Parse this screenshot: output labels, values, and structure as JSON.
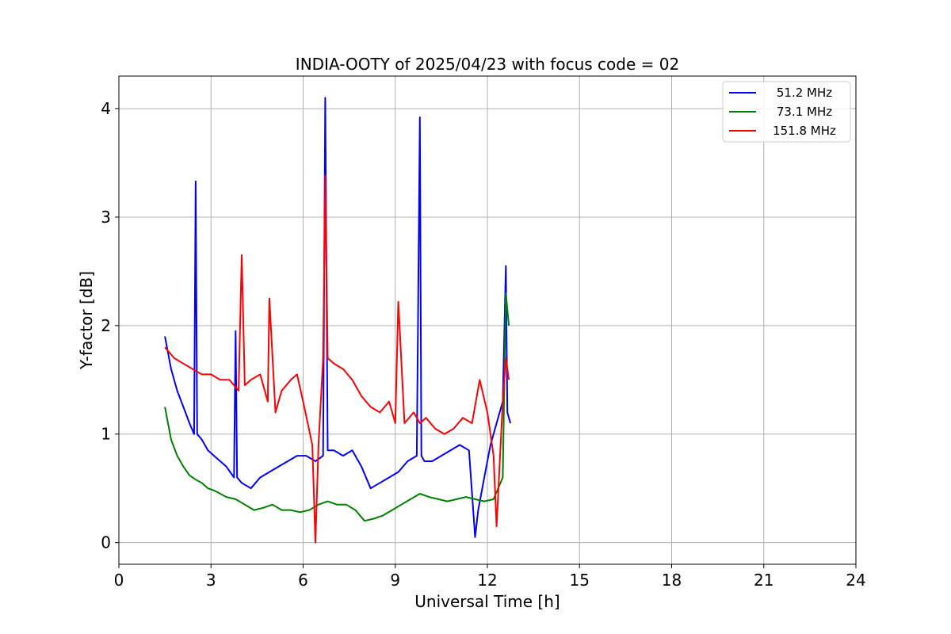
{
  "chart_data": {
    "type": "line",
    "title": "INDIA-OOTY of 2025/04/23 with focus code = 02",
    "xlabel": "Universal Time [h]",
    "ylabel": "Y-factor [dB]",
    "xlim": [
      0,
      24
    ],
    "ylim": [
      -0.2,
      4.3
    ],
    "xticks": [
      0,
      3,
      6,
      9,
      12,
      15,
      18,
      21,
      24
    ],
    "yticks": [
      0,
      1,
      2,
      3,
      4
    ],
    "grid": true,
    "legend_position": "top-right",
    "series": [
      {
        "name": "51.2 MHz",
        "color": "#0000ff",
        "x": [
          1.5,
          1.7,
          1.9,
          2.1,
          2.3,
          2.45,
          2.5,
          2.55,
          2.7,
          2.9,
          3.1,
          3.3,
          3.5,
          3.75,
          3.8,
          3.85,
          4.0,
          4.3,
          4.6,
          4.9,
          5.2,
          5.5,
          5.8,
          6.1,
          6.4,
          6.65,
          6.72,
          6.8,
          7.0,
          7.3,
          7.6,
          7.9,
          8.2,
          8.5,
          8.8,
          9.1,
          9.4,
          9.7,
          9.8,
          9.85,
          9.95,
          10.2,
          10.5,
          10.8,
          11.1,
          11.4,
          11.6,
          11.7,
          11.9,
          12.1,
          12.3,
          12.5,
          12.6,
          12.65,
          12.75
        ],
        "y": [
          1.9,
          1.6,
          1.4,
          1.25,
          1.1,
          1.0,
          3.33,
          1.0,
          0.95,
          0.85,
          0.8,
          0.75,
          0.7,
          0.6,
          1.95,
          0.6,
          0.55,
          0.5,
          0.6,
          0.65,
          0.7,
          0.75,
          0.8,
          0.8,
          0.75,
          0.8,
          4.1,
          0.85,
          0.85,
          0.8,
          0.85,
          0.7,
          0.5,
          0.55,
          0.6,
          0.65,
          0.75,
          0.8,
          3.92,
          0.8,
          0.75,
          0.75,
          0.8,
          0.85,
          0.9,
          0.85,
          0.05,
          0.3,
          0.6,
          0.9,
          1.1,
          1.3,
          2.55,
          1.2,
          1.1
        ]
      },
      {
        "name": "73.1 MHz",
        "color": "#008000",
        "x": [
          1.5,
          1.7,
          1.9,
          2.1,
          2.3,
          2.5,
          2.7,
          2.9,
          3.1,
          3.3,
          3.5,
          3.8,
          4.1,
          4.4,
          4.7,
          5.0,
          5.3,
          5.6,
          5.9,
          6.2,
          6.5,
          6.8,
          7.1,
          7.4,
          7.7,
          8.0,
          8.3,
          8.6,
          8.9,
          9.2,
          9.5,
          9.8,
          10.1,
          10.4,
          10.7,
          11.0,
          11.3,
          11.6,
          11.9,
          12.2,
          12.5,
          12.6,
          12.7
        ],
        "y": [
          1.25,
          0.95,
          0.8,
          0.7,
          0.62,
          0.58,
          0.55,
          0.5,
          0.48,
          0.45,
          0.42,
          0.4,
          0.35,
          0.3,
          0.32,
          0.35,
          0.3,
          0.3,
          0.28,
          0.3,
          0.35,
          0.38,
          0.35,
          0.35,
          0.3,
          0.2,
          0.22,
          0.25,
          0.3,
          0.35,
          0.4,
          0.45,
          0.42,
          0.4,
          0.38,
          0.4,
          0.42,
          0.4,
          0.38,
          0.4,
          0.6,
          2.3,
          2.0
        ]
      },
      {
        "name": "151.8 MHz",
        "color": "#ff0000",
        "x": [
          1.5,
          1.8,
          2.1,
          2.4,
          2.7,
          3.0,
          3.3,
          3.6,
          3.9,
          4.0,
          4.1,
          4.3,
          4.6,
          4.85,
          4.9,
          5.1,
          5.3,
          5.6,
          5.8,
          6.0,
          6.3,
          6.4,
          6.5,
          6.65,
          6.72,
          6.8,
          7.0,
          7.3,
          7.6,
          7.9,
          8.2,
          8.5,
          8.8,
          9.0,
          9.1,
          9.3,
          9.6,
          9.8,
          10.0,
          10.3,
          10.6,
          10.9,
          11.2,
          11.5,
          11.75,
          12.0,
          12.2,
          12.3,
          12.5,
          12.6,
          12.7
        ],
        "y": [
          1.8,
          1.7,
          1.65,
          1.6,
          1.55,
          1.55,
          1.5,
          1.5,
          1.4,
          2.65,
          1.45,
          1.5,
          1.55,
          1.3,
          2.25,
          1.2,
          1.4,
          1.5,
          1.55,
          1.3,
          0.9,
          0.0,
          0.9,
          1.7,
          3.38,
          1.7,
          1.65,
          1.6,
          1.5,
          1.35,
          1.25,
          1.2,
          1.3,
          1.1,
          2.22,
          1.1,
          1.2,
          1.1,
          1.15,
          1.05,
          1.0,
          1.05,
          1.15,
          1.1,
          1.5,
          1.2,
          0.8,
          0.15,
          1.3,
          1.7,
          1.5
        ]
      }
    ]
  }
}
